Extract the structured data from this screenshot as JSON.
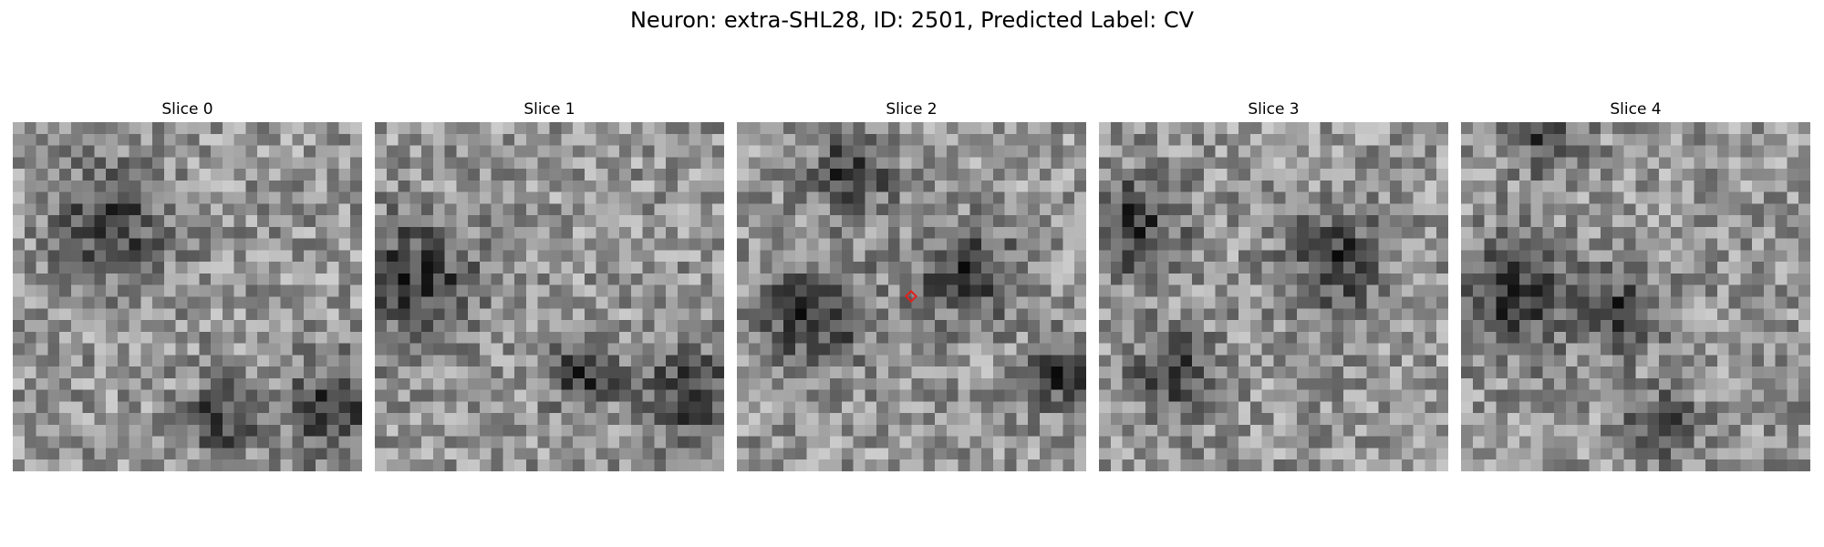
{
  "figure": {
    "suptitle": "Neuron: extra-SHL28, ID: 2501, Predicted Label: CV"
  },
  "panels": [
    {
      "title": "Slice 0",
      "dark_blobs": [
        [
          0.28,
          0.3,
          0.16
        ],
        [
          0.92,
          0.82,
          0.14
        ],
        [
          0.6,
          0.85,
          0.1
        ]
      ]
    },
    {
      "title": "Slice 1",
      "dark_blobs": [
        [
          0.12,
          0.45,
          0.18
        ],
        [
          0.9,
          0.78,
          0.14
        ],
        [
          0.6,
          0.72,
          0.1
        ]
      ]
    },
    {
      "title": "Slice 2",
      "dark_blobs": [
        [
          0.33,
          0.14,
          0.12
        ],
        [
          0.66,
          0.43,
          0.14
        ],
        [
          0.22,
          0.55,
          0.16
        ],
        [
          0.93,
          0.72,
          0.1
        ]
      ],
      "marker": {
        "label": "center-marker",
        "color": "#e0201e"
      }
    },
    {
      "title": "Slice 3",
      "dark_blobs": [
        [
          0.68,
          0.4,
          0.14
        ],
        [
          0.1,
          0.3,
          0.14
        ],
        [
          0.22,
          0.72,
          0.12
        ]
      ]
    },
    {
      "title": "Slice 4",
      "dark_blobs": [
        [
          0.15,
          0.5,
          0.16
        ],
        [
          0.58,
          0.88,
          0.1
        ],
        [
          0.25,
          0.05,
          0.1
        ],
        [
          0.45,
          0.55,
          0.12
        ]
      ]
    }
  ],
  "colormap": "gray"
}
